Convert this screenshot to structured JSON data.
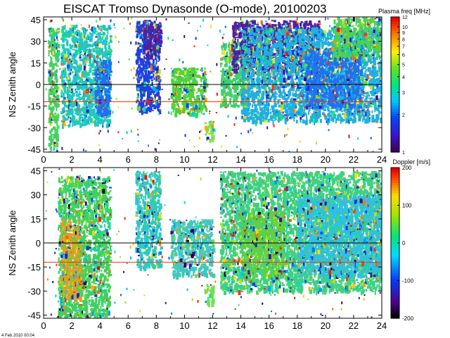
{
  "figure": {
    "title": "EISCAT Tromso Dynasonde (O-mode),  20100203",
    "footer_timestamp": "4 Feb 2010 00:04"
  },
  "colors": {
    "zero_line": "#000000",
    "reference_line": "#ff3300",
    "frame": "#000000"
  },
  "chart_data": [
    {
      "type": "heatmap",
      "id": "plasma",
      "ylabel": "NS Zenith angle",
      "x_ticks": [
        "0",
        "2",
        "4",
        "6",
        "8",
        "10",
        "12",
        "14",
        "16",
        "18",
        "20",
        "22",
        "24"
      ],
      "y_ticks": [
        "45",
        "30",
        "15",
        "0",
        "-15",
        "-30",
        "-45"
      ],
      "xlim": [
        0,
        24
      ],
      "ylim": [
        -47,
        47
      ],
      "zero_line": 0,
      "reference_line": -12,
      "colorbar": {
        "label": "Plasma freq [MHz]",
        "scale": "log",
        "range": [
          1,
          12
        ],
        "tick_labels": [
          "12",
          "10",
          "9",
          "8",
          "7",
          "6",
          "5",
          "4",
          "3",
          "2",
          "1"
        ],
        "tick_values": [
          12,
          10,
          9,
          8,
          7,
          6,
          5,
          4,
          3,
          2,
          1
        ]
      },
      "activity_blocks": [
        {
          "x": [
            0.3,
            1.0
          ],
          "y": [
            -45,
            40
          ],
          "color": "#44d060"
        },
        {
          "x": [
            1.2,
            4.7
          ],
          "y": [
            -28,
            42
          ],
          "color": "#20c8c0"
        },
        {
          "x": [
            3.6,
            4.7
          ],
          "y": [
            -20,
            18
          ],
          "color": "#2070f0"
        },
        {
          "x": [
            6.5,
            8.2
          ],
          "y": [
            -18,
            45
          ],
          "color": "#2040e0"
        },
        {
          "x": [
            7.0,
            8.3
          ],
          "y": [
            20,
            45
          ],
          "color": "#5020a0"
        },
        {
          "x": [
            9.0,
            11.5
          ],
          "y": [
            -20,
            12
          ],
          "color": "#50d040"
        },
        {
          "x": [
            11.4,
            12.0
          ],
          "y": [
            -38,
            -25
          ],
          "color": "#80e050"
        },
        {
          "x": [
            12.5,
            14.5
          ],
          "y": [
            -15,
            30
          ],
          "color": "#40d070"
        },
        {
          "x": [
            13.3,
            19.5
          ],
          "y": [
            10,
            45
          ],
          "color": "#5020a0"
        },
        {
          "x": [
            14.0,
            24.0
          ],
          "y": [
            -25,
            40
          ],
          "color": "#20b0e0"
        },
        {
          "x": [
            18.5,
            22.5
          ],
          "y": [
            -15,
            25
          ],
          "color": "#2070f0"
        },
        {
          "x": [
            20.5,
            24.0
          ],
          "y": [
            20,
            47
          ],
          "color": "#50d050"
        }
      ]
    },
    {
      "type": "heatmap",
      "id": "doppler",
      "ylabel": "NS Zenith angle",
      "x_ticks": [
        "0",
        "2",
        "4",
        "6",
        "8",
        "10",
        "12",
        "14",
        "16",
        "18",
        "20",
        "22",
        "24"
      ],
      "y_ticks": [
        "45",
        "30",
        "15",
        "0",
        "-15",
        "-30",
        "-45"
      ],
      "xlim": [
        0,
        24
      ],
      "ylim": [
        -47,
        47
      ],
      "zero_line": 0,
      "reference_line": -12,
      "colorbar": {
        "label": "Doppler [m/s]",
        "scale": "linear",
        "range": [
          -200,
          200
        ],
        "tick_labels": [
          "200",
          "100",
          "0",
          "-100",
          "-200"
        ],
        "tick_values": [
          200,
          100,
          0,
          -100,
          -200
        ]
      },
      "activity_blocks": [
        {
          "x": [
            1.0,
            4.7
          ],
          "y": [
            -45,
            42
          ],
          "color": "#40d060"
        },
        {
          "x": [
            1.2,
            2.6
          ],
          "y": [
            -35,
            15
          ],
          "color": "#e0a020"
        },
        {
          "x": [
            6.5,
            8.3
          ],
          "y": [
            -15,
            45
          ],
          "color": "#30c8c0"
        },
        {
          "x": [
            9.0,
            12.0
          ],
          "y": [
            -20,
            15
          ],
          "color": "#40c8c0"
        },
        {
          "x": [
            11.4,
            12.0
          ],
          "y": [
            -38,
            -25
          ],
          "color": "#70e050"
        },
        {
          "x": [
            12.5,
            24.0
          ],
          "y": [
            -30,
            45
          ],
          "color": "#40d080"
        },
        {
          "x": [
            14.0,
            17.0
          ],
          "y": [
            -20,
            20
          ],
          "color": "#60d040"
        },
        {
          "x": [
            18.0,
            24.0
          ],
          "y": [
            -20,
            30
          ],
          "color": "#30c0e0"
        }
      ]
    }
  ]
}
